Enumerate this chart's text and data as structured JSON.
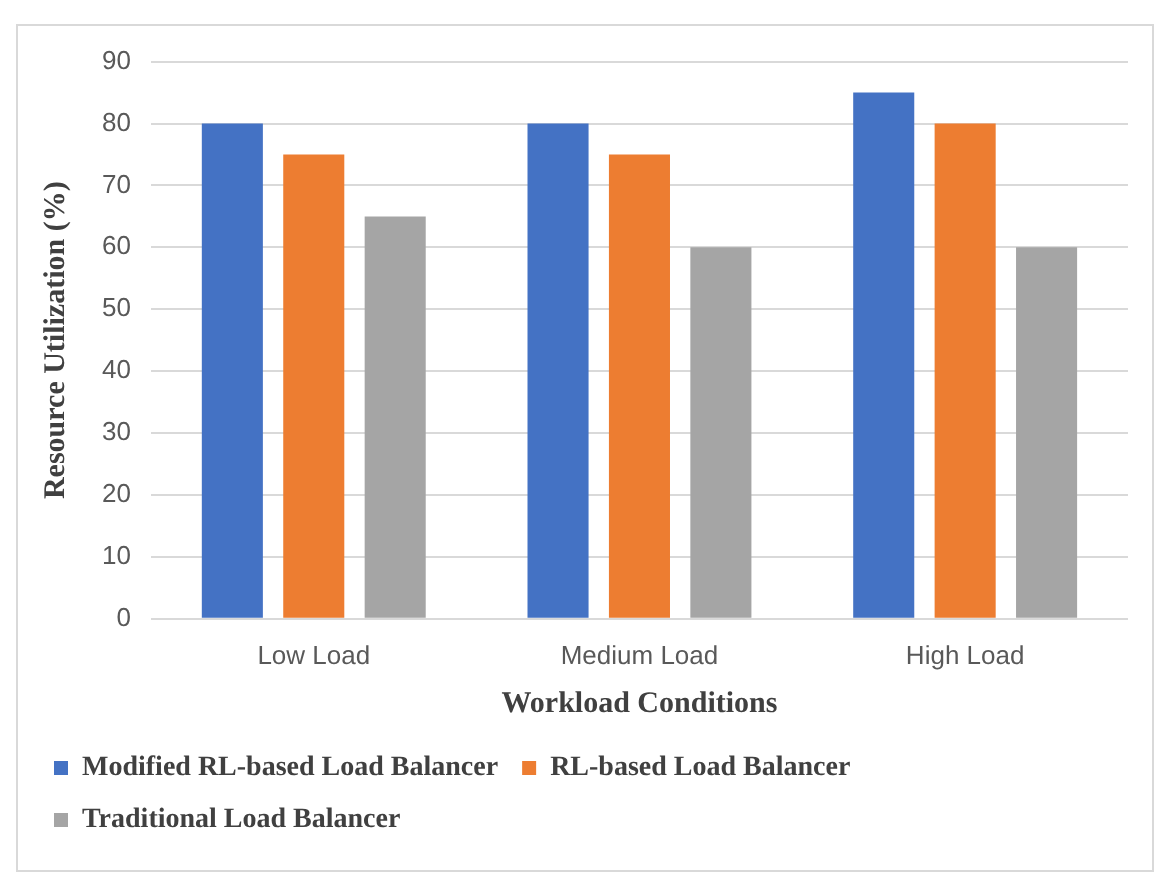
{
  "chart_data": {
    "type": "bar",
    "xlabel": "Workload Conditions",
    "ylabel": "Resource Utilization (%)",
    "categories": [
      "Low Load",
      "Medium Load",
      "High Load"
    ],
    "series": [
      {
        "name": "Modified RL-based Load Balancer",
        "color": "#4472c4",
        "values": [
          80,
          80,
          85
        ]
      },
      {
        "name": "RL-based Load Balancer",
        "color": "#ed7d31",
        "values": [
          75,
          75,
          80
        ]
      },
      {
        "name": "Traditional Load Balancer",
        "color": "#a5a5a5",
        "values": [
          65,
          60,
          60
        ]
      }
    ],
    "ylim": [
      0,
      90
    ],
    "yticks": [
      0,
      10,
      20,
      30,
      40,
      50,
      60,
      70,
      80,
      90
    ],
    "grid": "y",
    "legend": "bottom"
  }
}
